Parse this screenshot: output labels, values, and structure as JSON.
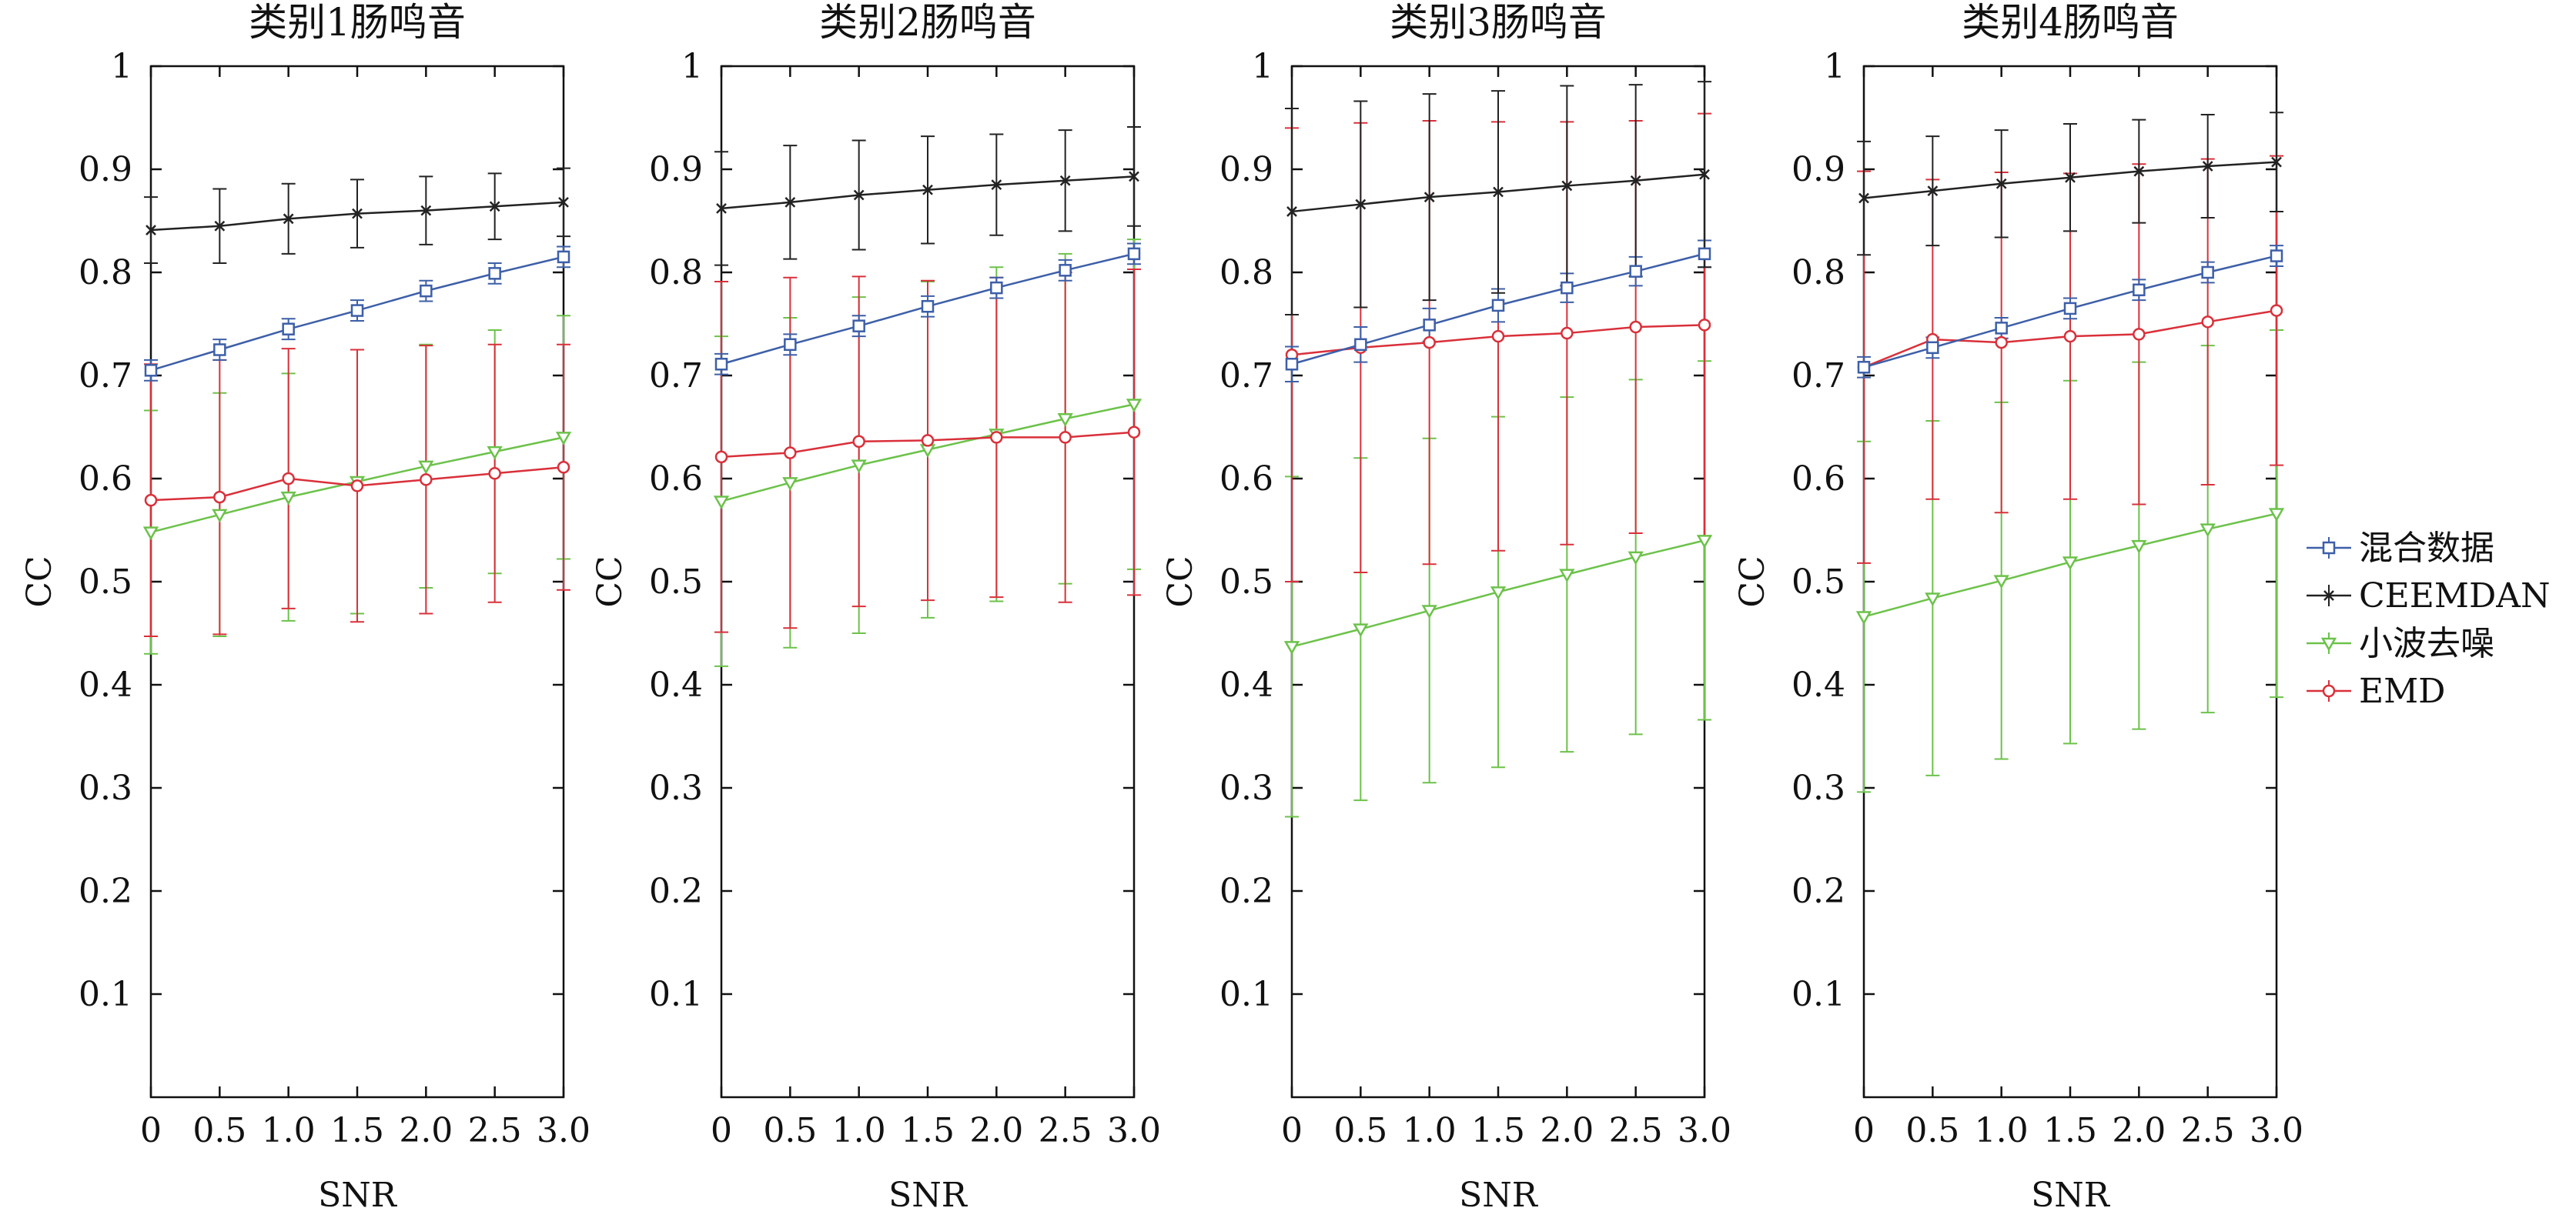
{
  "legend": {
    "placement": "right",
    "entries": [
      {
        "series": "mixed",
        "label": "混合数据"
      },
      {
        "series": "ceemdan",
        "label": "CEEMDAN"
      },
      {
        "series": "wavelet",
        "label": "小波去噪"
      },
      {
        "series": "emd",
        "label": "EMD"
      }
    ]
  },
  "series_styles": {
    "mixed": {
      "color": "#3d5fa8",
      "marker": "square"
    },
    "ceemdan": {
      "color": "#222222",
      "marker": "x"
    },
    "wavelet": {
      "color": "#6cc24a",
      "marker": "triangle-down"
    },
    "emd": {
      "color": "#d9303a",
      "marker": "circle"
    }
  },
  "chart_data": [
    {
      "type": "line",
      "title": "类别1肠鸣音",
      "xlabel": "SNR",
      "ylabel": "CC",
      "x": [
        0,
        0.5,
        1.0,
        1.5,
        2.0,
        2.5,
        3.0
      ],
      "xticks": [
        "0",
        "0.5",
        "1.0",
        "1.5",
        "2.0",
        "2.5",
        "3.0"
      ],
      "yticks": [
        "0.1",
        "0.2",
        "0.3",
        "0.4",
        "0.5",
        "0.6",
        "0.7",
        "0.8",
        "0.9",
        "1"
      ],
      "xlim": [
        0,
        3.0
      ],
      "ylim": [
        0,
        1
      ],
      "grid": false,
      "series": [
        {
          "key": "mixed",
          "name": "混合数据",
          "values": [
            0.705,
            0.725,
            0.745,
            0.763,
            0.782,
            0.799,
            0.815
          ],
          "err": [
            0.01,
            0.01,
            0.01,
            0.01,
            0.01,
            0.01,
            0.01
          ]
        },
        {
          "key": "ceemdan",
          "name": "CEEMDAN",
          "values": [
            0.841,
            0.845,
            0.852,
            0.857,
            0.86,
            0.864,
            0.868
          ],
          "err": [
            0.032,
            0.036,
            0.034,
            0.033,
            0.033,
            0.032,
            0.033
          ]
        },
        {
          "key": "wavelet",
          "name": "小波去噪",
          "values": [
            0.548,
            0.565,
            0.582,
            0.597,
            0.612,
            0.626,
            0.64
          ],
          "err": [
            0.118,
            0.118,
            0.12,
            0.128,
            0.118,
            0.118,
            0.118
          ]
        },
        {
          "key": "emd",
          "name": "EMD",
          "values": [
            0.579,
            0.582,
            0.6,
            0.593,
            0.599,
            0.605,
            0.611
          ],
          "err": [
            0.132,
            0.133,
            0.126,
            0.132,
            0.13,
            0.125,
            0.119
          ]
        }
      ]
    },
    {
      "type": "line",
      "title": "类别2肠鸣音",
      "xlabel": "SNR",
      "ylabel": "CC",
      "x": [
        0,
        0.5,
        1.0,
        1.5,
        2.0,
        2.5,
        3.0
      ],
      "xticks": [
        "0",
        "0.5",
        "1.0",
        "1.5",
        "2.0",
        "2.5",
        "3.0"
      ],
      "yticks": [
        "0.1",
        "0.2",
        "0.3",
        "0.4",
        "0.5",
        "0.6",
        "0.7",
        "0.8",
        "0.9",
        "1"
      ],
      "xlim": [
        0,
        3.0
      ],
      "ylim": [
        0,
        1
      ],
      "grid": false,
      "series": [
        {
          "key": "mixed",
          "name": "混合数据",
          "values": [
            0.711,
            0.73,
            0.748,
            0.767,
            0.785,
            0.802,
            0.818
          ],
          "err": [
            0.01,
            0.01,
            0.01,
            0.01,
            0.01,
            0.01,
            0.01
          ]
        },
        {
          "key": "ceemdan",
          "name": "CEEMDAN",
          "values": [
            0.862,
            0.868,
            0.875,
            0.88,
            0.885,
            0.889,
            0.893
          ],
          "err": [
            0.055,
            0.055,
            0.053,
            0.052,
            0.049,
            0.049,
            0.048
          ]
        },
        {
          "key": "wavelet",
          "name": "小波去噪",
          "values": [
            0.578,
            0.596,
            0.613,
            0.628,
            0.643,
            0.658,
            0.672
          ],
          "err": [
            0.16,
            0.16,
            0.163,
            0.163,
            0.162,
            0.16,
            0.16
          ]
        },
        {
          "key": "emd",
          "name": "EMD",
          "values": [
            0.621,
            0.625,
            0.636,
            0.637,
            0.64,
            0.64,
            0.645
          ],
          "err": [
            0.17,
            0.17,
            0.16,
            0.155,
            0.155,
            0.16,
            0.158
          ]
        }
      ]
    },
    {
      "type": "line",
      "title": "类别3肠鸣音",
      "xlabel": "SNR",
      "ylabel": "CC",
      "x": [
        0,
        0.5,
        1.0,
        1.5,
        2.0,
        2.5,
        3.0
      ],
      "xticks": [
        "0",
        "0.5",
        "1.0",
        "1.5",
        "2.0",
        "2.5",
        "3.0"
      ],
      "yticks": [
        "0.1",
        "0.2",
        "0.3",
        "0.4",
        "0.5",
        "0.6",
        "0.7",
        "0.8",
        "0.9",
        "1"
      ],
      "xlim": [
        0,
        3.0
      ],
      "ylim": [
        0,
        1
      ],
      "grid": false,
      "series": [
        {
          "key": "mixed",
          "name": "混合数据",
          "values": [
            0.711,
            0.73,
            0.749,
            0.768,
            0.785,
            0.801,
            0.818
          ],
          "err": [
            0.017,
            0.017,
            0.016,
            0.016,
            0.014,
            0.014,
            0.013
          ]
        },
        {
          "key": "ceemdan",
          "name": "CEEMDAN",
          "values": [
            0.859,
            0.866,
            0.873,
            0.878,
            0.884,
            0.889,
            0.895
          ],
          "err": [
            0.1,
            0.1,
            0.1,
            0.098,
            0.097,
            0.093,
            0.09
          ]
        },
        {
          "key": "wavelet",
          "name": "小波去噪",
          "values": [
            0.437,
            0.454,
            0.472,
            0.49,
            0.507,
            0.524,
            0.54
          ],
          "err": [
            0.165,
            0.166,
            0.167,
            0.17,
            0.172,
            0.172,
            0.174
          ]
        },
        {
          "key": "emd",
          "name": "EMD",
          "values": [
            0.72,
            0.727,
            0.732,
            0.738,
            0.741,
            0.747,
            0.749
          ],
          "err": [
            0.22,
            0.218,
            0.215,
            0.208,
            0.205,
            0.2,
            0.205
          ]
        }
      ]
    },
    {
      "type": "line",
      "title": "类别4肠鸣音",
      "xlabel": "SNR",
      "ylabel": "CC",
      "x": [
        0,
        0.5,
        1.0,
        1.5,
        2.0,
        2.5,
        3.0
      ],
      "xticks": [
        "0",
        "0.5",
        "1.0",
        "1.5",
        "2.0",
        "2.5",
        "3.0"
      ],
      "yticks": [
        "0.1",
        "0.2",
        "0.3",
        "0.4",
        "0.5",
        "0.6",
        "0.7",
        "0.8",
        "0.9",
        "1"
      ],
      "xlim": [
        0,
        3.0
      ],
      "ylim": [
        0,
        1
      ],
      "grid": false,
      "series": [
        {
          "key": "mixed",
          "name": "混合数据",
          "values": [
            0.708,
            0.727,
            0.746,
            0.765,
            0.783,
            0.8,
            0.816
          ],
          "err": [
            0.01,
            0.01,
            0.01,
            0.01,
            0.01,
            0.01,
            0.01
          ]
        },
        {
          "key": "ceemdan",
          "name": "CEEMDAN",
          "values": [
            0.872,
            0.879,
            0.886,
            0.892,
            0.898,
            0.903,
            0.907
          ],
          "err": [
            0.055,
            0.053,
            0.052,
            0.052,
            0.05,
            0.05,
            0.048
          ]
        },
        {
          "key": "wavelet",
          "name": "小波去噪",
          "values": [
            0.466,
            0.484,
            0.501,
            0.519,
            0.535,
            0.551,
            0.566
          ],
          "err": [
            0.17,
            0.172,
            0.173,
            0.176,
            0.178,
            0.178,
            0.178
          ]
        },
        {
          "key": "emd",
          "name": "EMD",
          "values": [
            0.708,
            0.735,
            0.732,
            0.738,
            0.74,
            0.752,
            0.763
          ],
          "err": [
            0.19,
            0.155,
            0.165,
            0.158,
            0.165,
            0.158,
            0.15
          ]
        }
      ]
    }
  ]
}
